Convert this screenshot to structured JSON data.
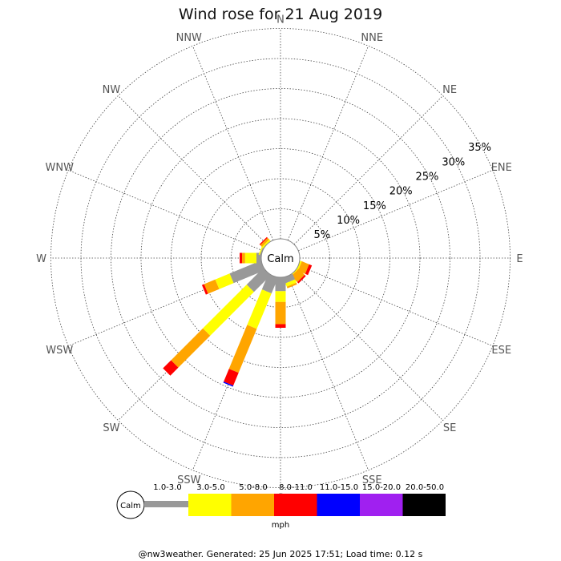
{
  "chart_data": {
    "type": "wind-rose",
    "title": "Wind rose for 21 Aug 2019",
    "directions": [
      "N",
      "NNE",
      "NE",
      "ENE",
      "E",
      "ESE",
      "SE",
      "SSE",
      "S",
      "SSW",
      "SW",
      "WSW",
      "W",
      "WNW",
      "NW",
      "NNW"
    ],
    "ring_labels": [
      "5%",
      "10%",
      "15%",
      "20%",
      "25%",
      "30%",
      "35%"
    ],
    "ring_values": [
      5,
      10,
      15,
      20,
      25,
      30,
      35
    ],
    "calm_label": "Calm",
    "speed_bins": [
      {
        "label": "1.0-3.0",
        "color": "#999999"
      },
      {
        "label": "3.0-5.0",
        "color": "#ffff00"
      },
      {
        "label": "5.0-8.0",
        "color": "#ffa500"
      },
      {
        "label": "8.0-11.0",
        "color": "#ff0000"
      },
      {
        "label": "11.0-15.0",
        "color": "#0000ff"
      },
      {
        "label": "15.0-20.0",
        "color": "#a020f0"
      },
      {
        "label": "20.0-50.0",
        "color": "#000000"
      }
    ],
    "units": "mph",
    "series": [
      {
        "direction": "ESE",
        "values": [
          0,
          0.3,
          1.3,
          0.5,
          0,
          0,
          0
        ]
      },
      {
        "direction": "SE",
        "values": [
          0,
          0.2,
          1.4,
          0.3,
          0,
          0,
          0
        ]
      },
      {
        "direction": "SSE",
        "values": [
          1.0,
          0.6,
          0.3,
          0,
          0,
          0,
          0
        ]
      },
      {
        "direction": "S",
        "values": [
          2.3,
          1.8,
          3.7,
          0.6,
          0,
          0,
          0
        ]
      },
      {
        "direction": "SSW",
        "values": [
          2.8,
          6.4,
          7.9,
          2.3,
          0.2,
          0,
          0
        ]
      },
      {
        "direction": "SW",
        "values": [
          3.9,
          10.3,
          7.5,
          1.9,
          0,
          0,
          0
        ]
      },
      {
        "direction": "WSW",
        "values": [
          5.6,
          2.6,
          2.0,
          0.4,
          0,
          0,
          0
        ]
      },
      {
        "direction": "W",
        "values": [
          0.8,
          1.9,
          0.5,
          0.4,
          0,
          0,
          0
        ]
      },
      {
        "direction": "WNW",
        "values": [
          0.2,
          0.2,
          0,
          0,
          0,
          0,
          0
        ]
      },
      {
        "direction": "NW",
        "values": [
          0,
          0.3,
          0.4,
          0.2,
          0,
          0,
          0
        ]
      }
    ]
  },
  "footer": "@nw3weather. Generated: 25 Jun 2025 17:51; Load time: 0.12 s"
}
